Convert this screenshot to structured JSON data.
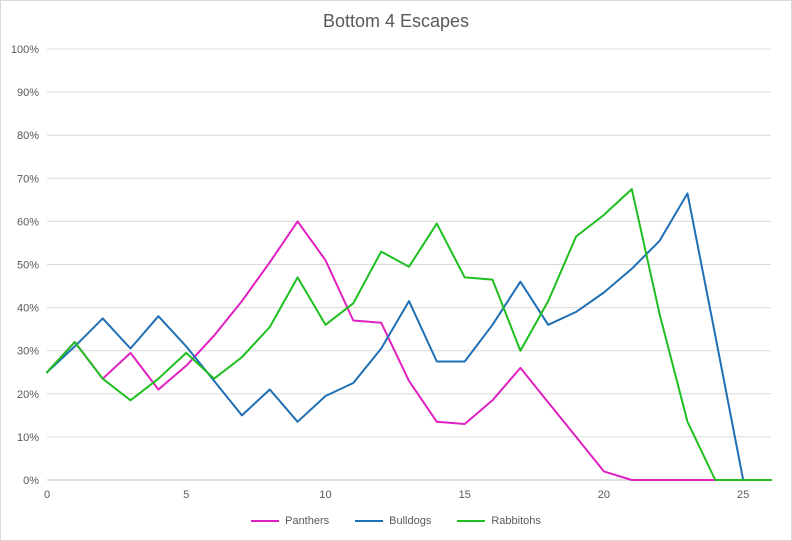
{
  "chart_data": {
    "type": "line",
    "title": "Bottom 4 Escapes",
    "xlabel": "",
    "ylabel": "",
    "xlim": [
      0,
      26
    ],
    "ylim": [
      0,
      100
    ],
    "x_ticks": [
      0,
      5,
      10,
      15,
      20,
      25
    ],
    "y_ticks": [
      0,
      10,
      20,
      30,
      40,
      50,
      60,
      70,
      80,
      90,
      100
    ],
    "y_tick_format": "percent",
    "grid": "horizontal",
    "legend_position": "bottom",
    "x": [
      0,
      1,
      2,
      3,
      4,
      5,
      6,
      7,
      8,
      9,
      10,
      11,
      12,
      13,
      14,
      15,
      16,
      17,
      18,
      19,
      20,
      21,
      22,
      23,
      24,
      25,
      26
    ],
    "series": [
      {
        "name": "Panthers",
        "color": "#e020c0",
        "values": [
          25,
          32,
          23.5,
          29.5,
          21,
          26.5,
          33.5,
          41.5,
          50.5,
          60,
          51,
          37,
          36.5,
          23,
          13.5,
          13,
          18.5,
          26,
          18,
          10,
          2,
          0,
          0,
          0,
          0,
          0,
          0
        ]
      },
      {
        "name": "Bulldogs",
        "color": "#1f6fb4",
        "values": [
          25,
          31,
          37.5,
          30.5,
          38,
          31,
          23,
          15,
          21,
          13.5,
          19.5,
          22.5,
          30.5,
          41.5,
          27.5,
          27.5,
          36,
          46,
          36,
          39,
          43.5,
          49,
          55.5,
          66.5,
          33.5,
          0,
          0
        ]
      },
      {
        "name": "Rabbitohs",
        "color": "#1fbf1f",
        "values": [
          25,
          32,
          23.5,
          18.5,
          23.5,
          29.5,
          23.5,
          28.5,
          35.5,
          47,
          36,
          41,
          53,
          49.5,
          59.5,
          47,
          46.5,
          30,
          41.5,
          56.5,
          61.5,
          67.5,
          38.5,
          13.5,
          0,
          0,
          0
        ]
      }
    ]
  }
}
